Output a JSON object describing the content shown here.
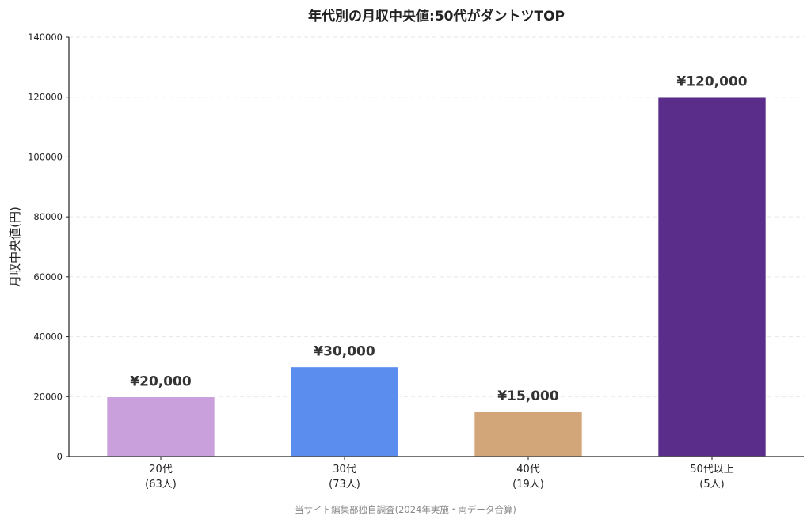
{
  "chart_data": {
    "type": "bar",
    "title": "年代別の月収中央値:50代がダントツTOP",
    "ylabel": "月収中央値(円)",
    "xlabel": "",
    "ylim": [
      0,
      140000
    ],
    "yticks": [
      "0",
      "20000",
      "40000",
      "60000",
      "80000",
      "100000",
      "120000",
      "140000"
    ],
    "ytick_values": [
      0,
      20000,
      40000,
      60000,
      80000,
      100000,
      120000,
      140000
    ],
    "categories": [
      {
        "line1": "20代",
        "line2": "(63人)"
      },
      {
        "line1": "30代",
        "line2": "(73人)"
      },
      {
        "line1": "40代",
        "line2": "(19人)"
      },
      {
        "line1": "50代以上",
        "line2": "(5人)"
      }
    ],
    "values": [
      20000,
      30000,
      15000,
      120000
    ],
    "value_labels": [
      "¥20,000",
      "¥30,000",
      "¥15,000",
      "¥120,000"
    ],
    "colors": [
      "#c9a0dc",
      "#5b8dee",
      "#d2a679",
      "#5b2d8a"
    ],
    "grid": true,
    "source": "当サイト編集部独自調査(2024年実施・両データ合算)"
  }
}
